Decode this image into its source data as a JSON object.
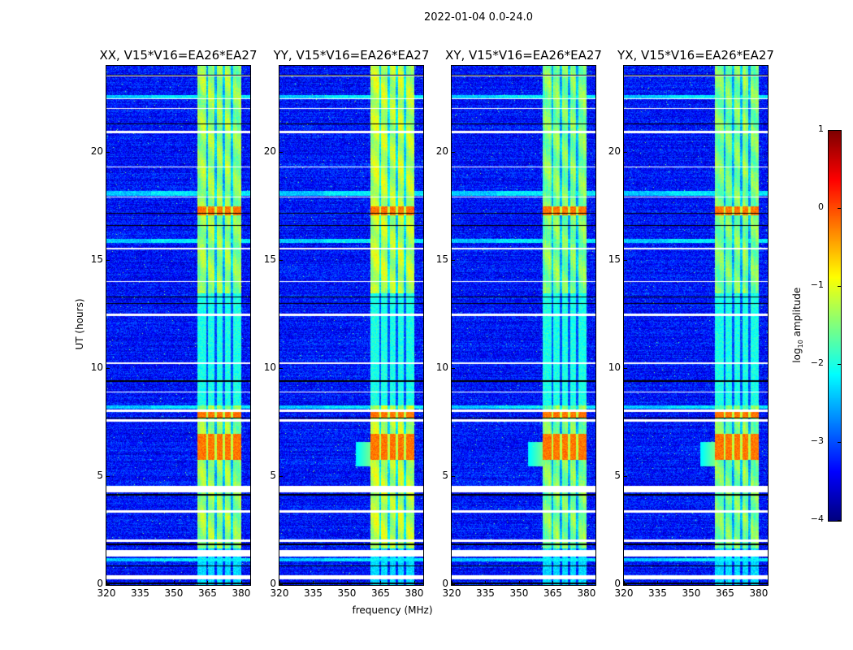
{
  "suptitle": "2022-01-04 0.0-24.0",
  "xlabel": "frequency (MHz)",
  "ylabel": "UT (hours)",
  "colorbar": {
    "label_prefix": "log",
    "label_sub": "10",
    "label_suffix": " amplitude",
    "range": [
      -4,
      1
    ],
    "ticks": [
      "1",
      "0",
      "−1",
      "−2",
      "−3",
      "−4"
    ],
    "tick_values": [
      1,
      0,
      -1,
      -2,
      -3,
      -4
    ],
    "colormap": "jet"
  },
  "chart_data": {
    "type": "heatmap",
    "xlim": [
      320,
      384
    ],
    "ylim": [
      0,
      24
    ],
    "x_ticks": [
      320,
      335,
      350,
      365,
      380
    ],
    "x_tick_labels": [
      "320",
      "335",
      "350",
      "365",
      "380"
    ],
    "y_ticks": [
      0,
      5,
      10,
      15,
      20
    ],
    "y_tick_labels": [
      "0",
      "5",
      "10",
      "15",
      "20"
    ],
    "panels": [
      {
        "title": "XX, V15*V16=EA26*EA27",
        "band_level": -1.4
      },
      {
        "title": "YY, V15*V16=EA26*EA27",
        "band_level": -1.2
      },
      {
        "title": "XY, V15*V16=EA26*EA27",
        "band_level": -1.5
      },
      {
        "title": "YX, V15*V16=EA26*EA27",
        "band_level": -1.5
      }
    ],
    "background_level": -3.3,
    "signal_band_mhz": [
      360.5,
      380
    ],
    "signal_channel_gaps_mhz": [
      364.8,
      368.6,
      372.2,
      376
    ],
    "signal_active_hours": [
      1.7,
      24
    ],
    "strong_signal_hours": [
      [
        5.8,
        7.0
      ],
      [
        17.1,
        17.5
      ],
      [
        7.7,
        8.0
      ]
    ],
    "weak_signal_hours": [
      [
        8.3,
        13.5
      ]
    ],
    "flagged_hours_white": [
      [
        0.28,
        0.45
      ],
      [
        1.3,
        1.6
      ],
      [
        2.0,
        2.1
      ],
      [
        3.35,
        3.45
      ],
      [
        4.3,
        4.6
      ],
      [
        7.55,
        7.65
      ],
      [
        8.0,
        8.1
      ],
      [
        8.9,
        8.95
      ],
      [
        10.2,
        10.3
      ],
      [
        12.45,
        12.55
      ],
      [
        14.0,
        14.05
      ],
      [
        15.5,
        15.6
      ],
      [
        17.9,
        17.95
      ],
      [
        19.3,
        19.35
      ],
      [
        20.9,
        21.0
      ],
      [
        22.0,
        22.05
      ],
      [
        22.45,
        22.5
      ],
      [
        23.5,
        23.55
      ]
    ],
    "flagged_hours_black": [
      [
        0.05,
        0.1
      ],
      [
        0.85,
        0.9
      ],
      [
        1.85,
        1.9
      ],
      [
        4.15,
        4.2
      ],
      [
        7.7,
        7.75
      ],
      [
        9.4,
        9.45
      ],
      [
        13.0,
        13.05
      ],
      [
        13.3,
        13.35
      ],
      [
        16.6,
        16.65
      ],
      [
        17.15,
        17.2
      ],
      [
        21.3,
        21.35
      ],
      [
        23.55,
        23.6
      ]
    ],
    "rfi_stripes_hours": [
      [
        1.1,
        1.25
      ],
      [
        8.15,
        8.3
      ],
      [
        15.8,
        16.0
      ],
      [
        18.0,
        18.2
      ],
      [
        22.5,
        22.65
      ]
    ]
  }
}
